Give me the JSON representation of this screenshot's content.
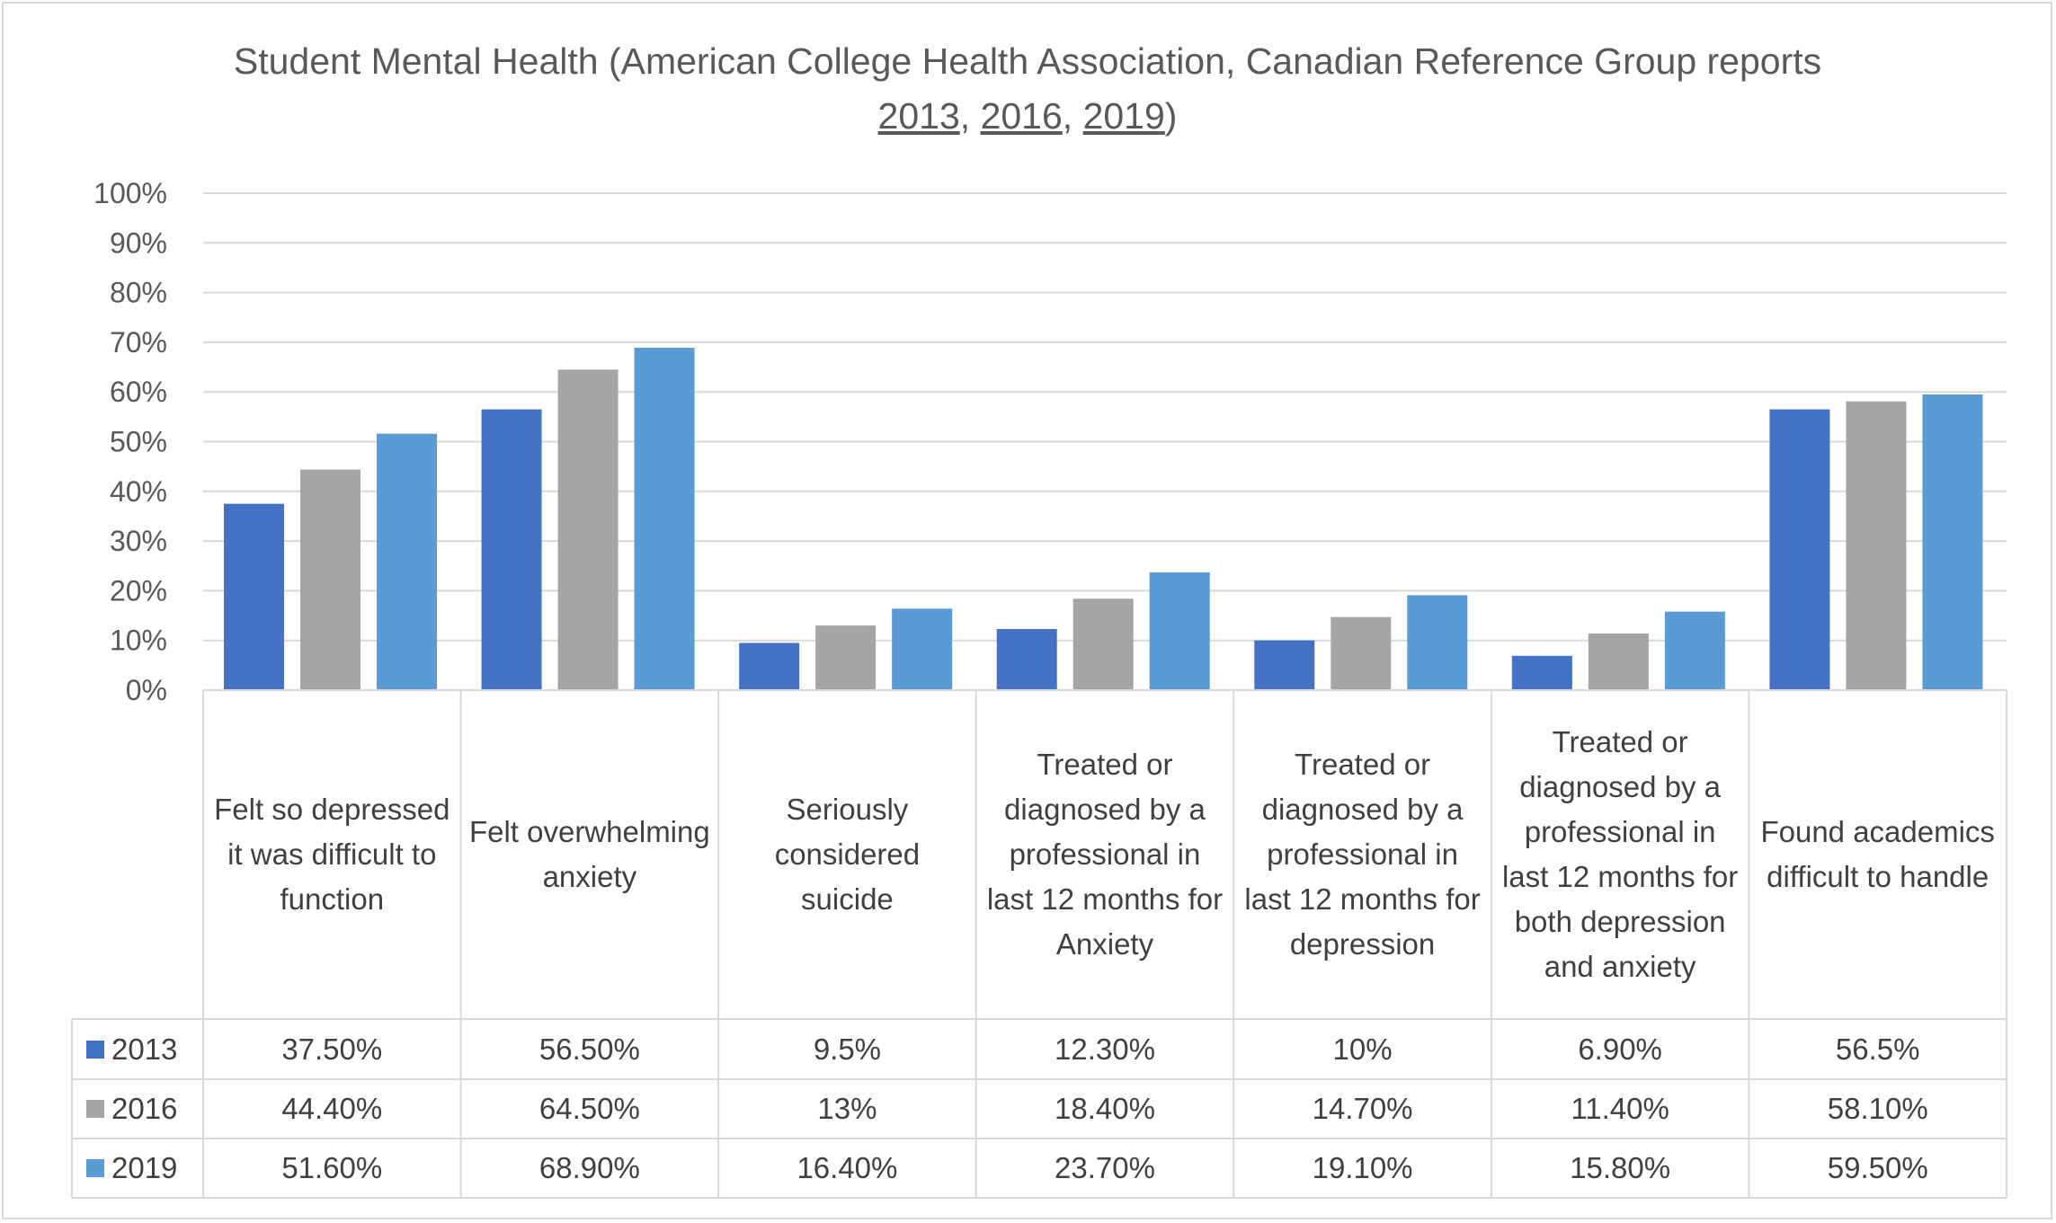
{
  "chart_data": {
    "type": "bar",
    "title": "Student Mental Health (American College Health Association, Canadian Reference Group reports 2013, 2016, 2019)",
    "title_parts": {
      "prefix": "Student Mental Health (American College Health Association, Canadian Reference Group reports ",
      "links": [
        "2013",
        "2016",
        "2019"
      ],
      "separator": ", ",
      "suffix": ")"
    },
    "categories": [
      "Felt so depressed it was difficult to function",
      "Felt overwhelming anxiety",
      "Seriously considered suicide",
      "Treated or diagnosed by a professional in last 12 months for Anxiety",
      "Treated or diagnosed by a professional in last 12 months for depression",
      "Treated or diagnosed by a professional in last 12 months for both depression and anxiety",
      "Found academics difficult to handle"
    ],
    "series": [
      {
        "name": "2013",
        "color": "#4472C4",
        "values": [
          37.5,
          56.5,
          9.5,
          12.3,
          10,
          6.9,
          56.5
        ],
        "labels": [
          "37.50%",
          "56.50%",
          "9.5%",
          "12.30%",
          "10%",
          "6.90%",
          "56.5%"
        ]
      },
      {
        "name": "2016",
        "color": "#A5A5A5",
        "values": [
          44.4,
          64.5,
          13,
          18.4,
          14.7,
          11.4,
          58.1
        ],
        "labels": [
          "44.40%",
          "64.50%",
          "13%",
          "18.40%",
          "14.70%",
          "11.40%",
          "58.10%"
        ]
      },
      {
        "name": "2019",
        "color": "#5B9BD5",
        "values": [
          51.6,
          68.9,
          16.4,
          23.7,
          19.1,
          15.8,
          59.5
        ],
        "labels": [
          "51.60%",
          "68.90%",
          "16.40%",
          "23.70%",
          "19.10%",
          "15.80%",
          "59.50%"
        ]
      }
    ],
    "yticks": [
      "0%",
      "10%",
      "20%",
      "30%",
      "40%",
      "50%",
      "60%",
      "70%",
      "80%",
      "90%",
      "100%"
    ],
    "ylim": [
      0,
      100
    ],
    "xlabel": "",
    "ylabel": "",
    "grid": true,
    "legend": "data-table-left"
  }
}
